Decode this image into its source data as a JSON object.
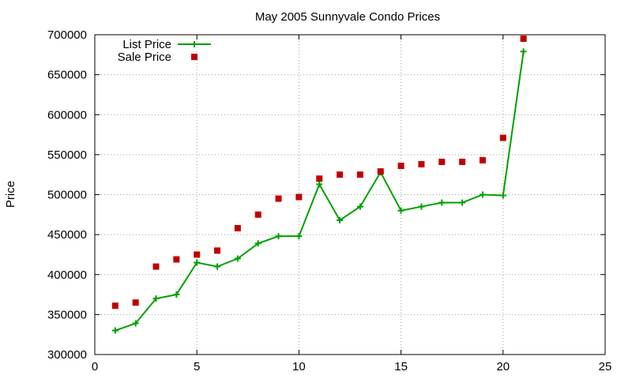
{
  "chart_data": {
    "type": "line",
    "title": "May 2005 Sunnyvale Condo Prices",
    "xlabel": "",
    "ylabel": "Price",
    "xlim": [
      0,
      25
    ],
    "ylim": [
      300000,
      700000
    ],
    "x_ticks": [
      0,
      5,
      10,
      15,
      20,
      25
    ],
    "y_ticks": [
      300000,
      350000,
      400000,
      450000,
      500000,
      550000,
      600000,
      650000,
      700000
    ],
    "grid": true,
    "legend_position": "top-left",
    "series": [
      {
        "name": "List Price",
        "style": "line-points",
        "marker": "plus",
        "color": "#00a000",
        "x": [
          1,
          2,
          3,
          4,
          5,
          6,
          7,
          8,
          9,
          10,
          11,
          12,
          13,
          14,
          15,
          16,
          17,
          18,
          19,
          20,
          21
        ],
        "y": [
          330000,
          339000,
          370000,
          375000,
          415000,
          410000,
          420000,
          439000,
          448000,
          448000,
          513000,
          468000,
          485000,
          528000,
          480000,
          485000,
          490000,
          490000,
          500000,
          499000,
          679000
        ]
      },
      {
        "name": "Sale Price",
        "style": "points",
        "marker": "square",
        "color": "#c00000",
        "x": [
          1,
          2,
          3,
          4,
          5,
          6,
          7,
          8,
          9,
          10,
          11,
          12,
          13,
          14,
          15,
          16,
          17,
          18,
          19,
          20,
          21
        ],
        "y": [
          361000,
          365000,
          410000,
          419000,
          425000,
          430000,
          458000,
          475000,
          495000,
          497000,
          520000,
          525000,
          525000,
          529000,
          536000,
          538000,
          541000,
          541000,
          543000,
          571000,
          695000
        ]
      }
    ]
  }
}
